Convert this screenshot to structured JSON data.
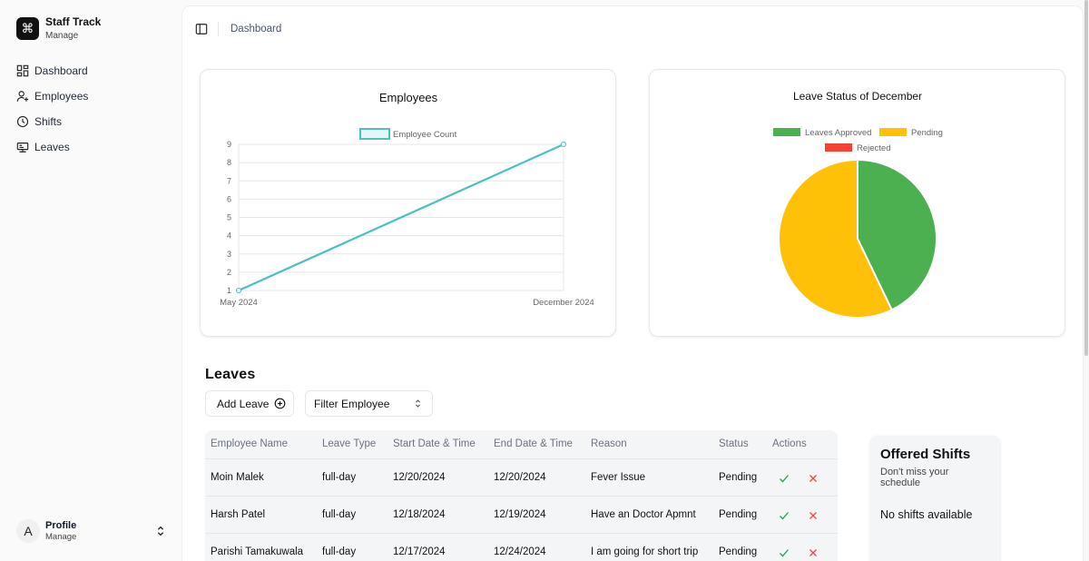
{
  "app": {
    "name": "Staff Track",
    "subtitle": "Manage",
    "logo_glyph": "⌘"
  },
  "sidebar": {
    "items": [
      {
        "label": "Dashboard",
        "icon": "dashboard-icon"
      },
      {
        "label": "Employees",
        "icon": "user-plus-icon"
      },
      {
        "label": "Shifts",
        "icon": "clock-icon"
      },
      {
        "label": "Leaves",
        "icon": "leaves-icon"
      }
    ]
  },
  "profile": {
    "initial": "A",
    "name": "Profile",
    "subtitle": "Manage"
  },
  "header": {
    "breadcrumb": "Dashboard"
  },
  "charts": {
    "employees_title": "Employees",
    "leave_title": "Leave Status of December"
  },
  "chart_data": [
    {
      "type": "line",
      "title": "Employees",
      "x": [
        "May 2024",
        "December 2024"
      ],
      "series": [
        {
          "name": "Employee Count",
          "values": [
            1,
            9
          ],
          "color": "#4bc0c0"
        }
      ],
      "yticks": [
        1,
        2,
        3,
        4,
        5,
        6,
        7,
        8,
        9
      ],
      "ylim": [
        1,
        9
      ],
      "legend": "top",
      "grid": true
    },
    {
      "type": "pie",
      "title": "Leave Status of December",
      "labels": [
        "Leaves Approved",
        "Pending",
        "Rejected"
      ],
      "values": [
        3,
        4,
        0
      ],
      "colors": [
        "#4caf50",
        "#ffc107",
        "#f44336"
      ],
      "legend": "top"
    }
  ],
  "leaves": {
    "title": "Leaves",
    "add_label": "Add Leave",
    "filter_label": "Filter Employee",
    "columns": [
      "Employee Name",
      "Leave Type",
      "Start Date & Time",
      "End Date & Time",
      "Reason",
      "Status",
      "Actions"
    ],
    "rows": [
      {
        "name": "Moin Malek",
        "type": "full-day",
        "start": "12/20/2024",
        "end": "12/20/2024",
        "reason": "Fever Issue",
        "status": "Pending"
      },
      {
        "name": "Harsh Patel",
        "type": "full-day",
        "start": "12/18/2024",
        "end": "12/19/2024",
        "reason": "Have an Doctor Apmnt",
        "status": "Pending"
      },
      {
        "name": "Parishi Tamakuwala",
        "type": "full-day",
        "start": "12/17/2024",
        "end": "12/24/2024",
        "reason": "I am going for short trip",
        "status": "Pending"
      }
    ]
  },
  "offered_shifts": {
    "title": "Offered Shifts",
    "subtitle": "Don't miss your schedule",
    "empty": "No shifts available"
  },
  "colors": {
    "approve": "#22a34a",
    "reject": "#ef4444",
    "line": "#4bc0c0"
  }
}
